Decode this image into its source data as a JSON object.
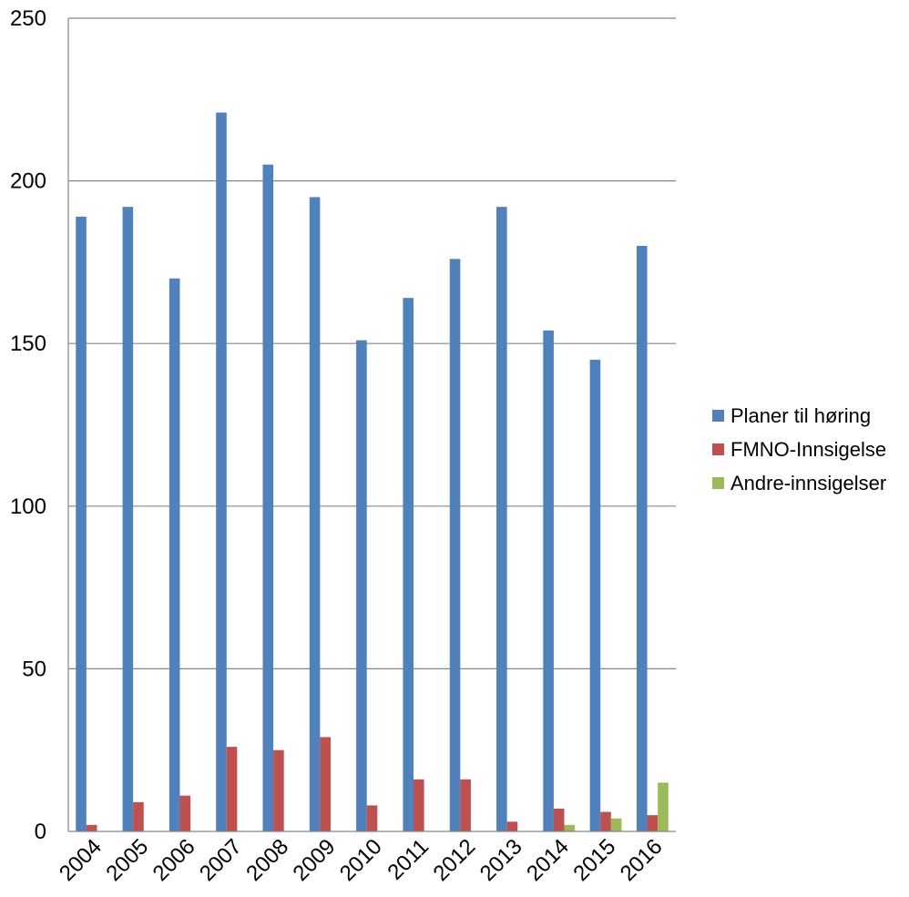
{
  "chart_data": {
    "type": "bar",
    "categories": [
      "2004",
      "2005",
      "2006",
      "2007",
      "2008",
      "2009",
      "2010",
      "2011",
      "2012",
      "2013",
      "2014",
      "2015",
      "2016"
    ],
    "series": [
      {
        "name": "Planer til høring",
        "color": "#4F81BD",
        "values": [
          189,
          192,
          170,
          221,
          205,
          195,
          151,
          164,
          176,
          192,
          154,
          145,
          180
        ]
      },
      {
        "name": "FMNO-Innsigelse",
        "color": "#C0504D",
        "values": [
          2,
          9,
          11,
          26,
          25,
          29,
          8,
          16,
          16,
          3,
          7,
          6,
          5
        ]
      },
      {
        "name": "Andre-innsigelser",
        "color": "#9BBB59",
        "values": [
          0,
          0,
          0,
          0,
          0,
          0,
          0,
          0,
          0,
          0,
          2,
          4,
          15
        ]
      }
    ],
    "ylim": [
      0,
      250
    ],
    "yticks": [
      "0",
      "50",
      "100",
      "150",
      "200",
      "250"
    ],
    "grid": true,
    "legend_position": "right",
    "title": "",
    "xlabel": "",
    "ylabel": ""
  }
}
